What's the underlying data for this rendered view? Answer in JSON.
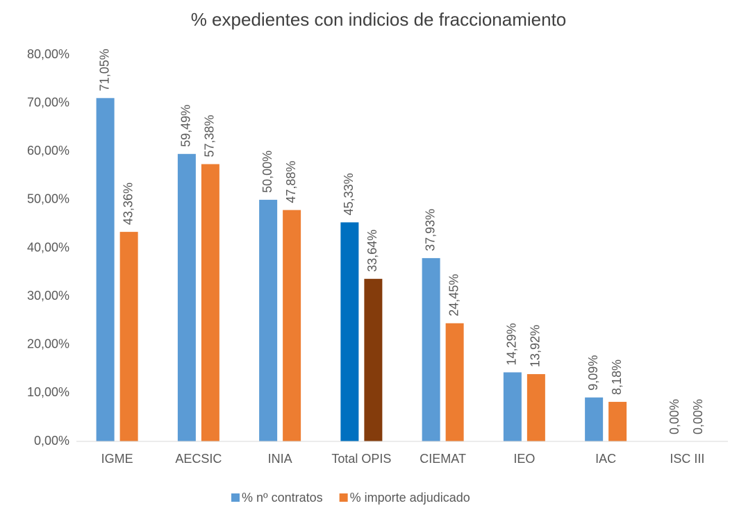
{
  "chart_data": {
    "type": "bar",
    "title": "% expedientes con indicios de fraccionamiento",
    "categories": [
      "IGME",
      "AECSIC",
      "INIA",
      "Total OPIS",
      "CIEMAT",
      "IEO",
      "IAC",
      "ISC III"
    ],
    "series": [
      {
        "name": "% nº contratos",
        "color": "#5b9bd5",
        "colors": [
          "#5b9bd5",
          "#5b9bd5",
          "#5b9bd5",
          "#0070c0",
          "#5b9bd5",
          "#5b9bd5",
          "#5b9bd5",
          "#5b9bd5"
        ],
        "values": [
          71.05,
          59.49,
          50.0,
          45.33,
          37.93,
          14.29,
          9.09,
          0.0
        ],
        "value_labels": [
          "71,05%",
          "59,49%",
          "50,00%",
          "45,33%",
          "37,93%",
          "14,29%",
          "9,09%",
          "0,00%"
        ]
      },
      {
        "name": "% importe adjudicado",
        "color": "#ed7d31",
        "colors": [
          "#ed7d31",
          "#ed7d31",
          "#ed7d31",
          "#843c0c",
          "#ed7d31",
          "#ed7d31",
          "#ed7d31",
          "#ed7d31"
        ],
        "values": [
          43.36,
          57.38,
          47.88,
          33.64,
          24.45,
          13.92,
          8.18,
          0.0
        ],
        "value_labels": [
          "43,36%",
          "57,38%",
          "47,88%",
          "33,64%",
          "24,45%",
          "13,92%",
          "8,18%",
          "0,00%"
        ]
      }
    ],
    "ylim": [
      0,
      80
    ],
    "yticks": [
      {
        "value": 0,
        "label": "0,00%"
      },
      {
        "value": 10,
        "label": "10,00%"
      },
      {
        "value": 20,
        "label": "20,00%"
      },
      {
        "value": 30,
        "label": "30,00%"
      },
      {
        "value": 40,
        "label": "40,00%"
      },
      {
        "value": 50,
        "label": "50,00%"
      },
      {
        "value": 60,
        "label": "60,00%"
      },
      {
        "value": 70,
        "label": "70,00%"
      },
      {
        "value": 80,
        "label": "80,00%"
      }
    ],
    "grid": false,
    "legend": "bottom"
  }
}
